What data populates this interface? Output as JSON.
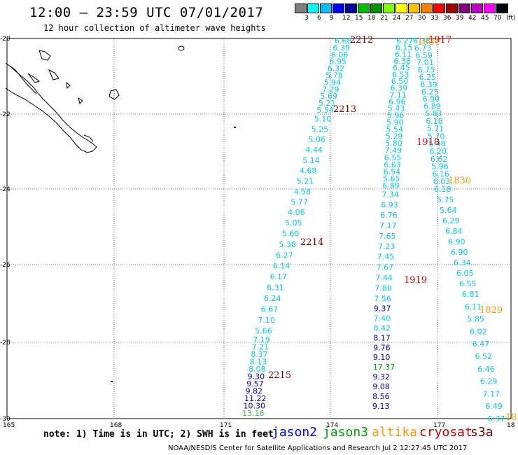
{
  "header": {
    "title": "12:00 – 23:59 UTC 07/01/2017",
    "subtitle": "12 hour collection of altimeter wave heights"
  },
  "color_scale": {
    "labels": [
      "3",
      "6",
      "9",
      "12",
      "15",
      "18",
      "21",
      "24",
      "27",
      "30",
      "33",
      "36",
      "39",
      "42",
      "45",
      "70",
      "(ft)"
    ],
    "colors": [
      "#808080",
      "#00ffff",
      "#00bfff",
      "#0000ff",
      "#0000a0",
      "#00c000",
      "#009000",
      "#80ff00",
      "#ffff00",
      "#ffc000",
      "#ff8000",
      "#ff0000",
      "#a00000",
      "#800080",
      "#c000c0",
      "#ff00ff",
      "#000000"
    ]
  },
  "map": {
    "lat_labels": [
      "-20",
      "-22",
      "-24",
      "-26",
      "-28",
      "-30"
    ],
    "lon_labels": [
      "165",
      "168",
      "171",
      "174",
      "177",
      "18"
    ]
  },
  "tracks": [
    {
      "id": "j2a",
      "color": "#00c8e8",
      "values": [
        "6.68",
        "6.39",
        "6.06",
        "6.95",
        "6.32",
        "5.78",
        "5.94",
        "7.29",
        "5.69",
        "5.21",
        "5.54",
        "5.10",
        "5.25",
        "5.06",
        "4.44",
        "5.14",
        "4.68",
        "5.21",
        "4.58",
        "5.77",
        "4.06",
        "5.05",
        "5.60",
        "5.38",
        "6.27",
        "6.14",
        "6.17",
        "6.31",
        "6.24",
        "6.67",
        "7.10",
        "5.66",
        "7.19",
        "7.21",
        "8.37",
        "8.13",
        "8.08",
        "9.30",
        "9.57",
        "9.82",
        "11.22",
        "10.30",
        "13.16"
      ],
      "tail_colors": {
        "37": "#0000c0",
        "38": "#0000c0",
        "39": "#0000c0",
        "40": "#0000c0",
        "41": "#0000c0",
        "42": "#40c040"
      }
    },
    {
      "id": "j3a",
      "color": "#00c8e8",
      "values": [
        "6.27",
        "6.15",
        "6.11",
        "6.38",
        "6.45",
        "6.53",
        "6.50",
        "6.39",
        "7.11",
        "6.96",
        "5.43",
        "5.96",
        "5.90",
        "5.54",
        "5.29",
        "5.80",
        "7.49",
        "6.55",
        "6.63",
        "6.54",
        "5.65",
        "6.89",
        "7.34",
        "6.93",
        "6.76",
        "7.17",
        "7.65",
        "7.23",
        "7.45",
        "7.67",
        "7.44",
        "7.80",
        "7.56",
        "9.37",
        "7.40",
        "8.42",
        "8.17",
        "9.76",
        "9.10",
        "17.37",
        "9.32",
        "9.08",
        "8.56",
        "9.13"
      ],
      "tail_colors": {
        "33": "#0000c0",
        "36": "#0000c0",
        "37": "#0000c0",
        "38": "#0000c0",
        "39": "#00a000",
        "40": "#0000c0",
        "41": "#0000c0",
        "42": "#0000c0",
        "43": "#0000c0"
      }
    },
    {
      "id": "j3b",
      "color": "#00c8e8",
      "values": [
        "6.38",
        "6.73",
        "6.59",
        "7.01",
        "6.75",
        "6.25",
        "6.39",
        "6.25",
        "6.90",
        "6.89",
        "5.83",
        "6.18",
        "5.71",
        "5.70",
        "5.48",
        "6.20",
        "6.62",
        "5.96",
        "6.16",
        "6.03",
        "6.18",
        "5.75",
        "5.64",
        "6.29",
        "6.84",
        "6.90",
        "6.90",
        "6.34",
        "6.05",
        "6.55",
        "6.81",
        "6.11",
        "5.85",
        "6.02",
        "6.47",
        "6.52",
        "6.46",
        "6.29",
        "7.17",
        "6.49",
        "6.37"
      ],
      "tail_colors": {}
    }
  ],
  "time_labels": [
    {
      "text": "2212",
      "color": "#800000"
    },
    {
      "text": "2213",
      "color": "#800000"
    },
    {
      "text": "2214",
      "color": "#800000"
    },
    {
      "text": "2215",
      "color": "#800000"
    },
    {
      "text": "1917",
      "color": "#e00000"
    },
    {
      "text": "1918",
      "color": "#e00000"
    },
    {
      "text": "1919",
      "color": "#e00000"
    },
    {
      "text": "1830",
      "color": "#ff9900"
    },
    {
      "text": "1829",
      "color": "#ff9900"
    },
    {
      "text": "1831",
      "color": "#ff9900"
    },
    {
      "text": "18",
      "color": "#ff9900"
    }
  ],
  "note": "note: 1) Time is in UTC; 2) SWH is in feet",
  "satellites": [
    {
      "name": "jason2",
      "color": "#0000ff"
    },
    {
      "name": "jason3",
      "color": "#00a000"
    },
    {
      "name": "altika",
      "color": "#ff9900"
    },
    {
      "name": "cryosat",
      "color": "#cc0000"
    },
    {
      "name": "s3a",
      "color": "#800000"
    }
  ],
  "footer": "NOAA/NESDIS Center for Satellite Applications and Research   Jul  2 12:27:45 UTC 2017"
}
